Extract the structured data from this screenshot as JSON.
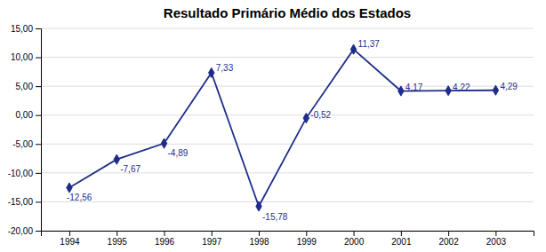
{
  "chart_data": {
    "type": "line",
    "title": "Resultado Primário Médio dos Estados",
    "x": [
      1994,
      1995,
      1996,
      1997,
      1998,
      1999,
      2000,
      2001,
      2002,
      2003
    ],
    "values": [
      -12.56,
      -7.67,
      -4.89,
      7.33,
      -15.78,
      -0.52,
      11.37,
      4.17,
      4.22,
      4.29
    ],
    "value_labels": [
      "-12,56",
      "-7,67",
      "-4,89",
      "7,33",
      "-15,78",
      "-0,52",
      "11,37",
      "4,17",
      "4,22",
      "4,29"
    ],
    "data_labels": true,
    "color": "#1F2D8A",
    "marker": "diamond",
    "xlim": [
      1993.4,
      2003.8
    ],
    "xticks": [
      1994,
      1995,
      1996,
      1997,
      1998,
      1999,
      2000,
      2001,
      2002,
      2003
    ],
    "ylim": [
      -20,
      15
    ],
    "yticks": [
      {
        "value": -20,
        "label": "-20,00"
      },
      {
        "value": -15,
        "label": "-15,00"
      },
      {
        "value": -10,
        "label": "-10,00"
      },
      {
        "value": -5,
        "label": "-5,00"
      },
      {
        "value": 0,
        "label": "0,00"
      },
      {
        "value": 5,
        "label": "5,00"
      },
      {
        "value": 10,
        "label": "10,00"
      },
      {
        "value": 15,
        "label": "15,00"
      }
    ],
    "grid": true
  }
}
